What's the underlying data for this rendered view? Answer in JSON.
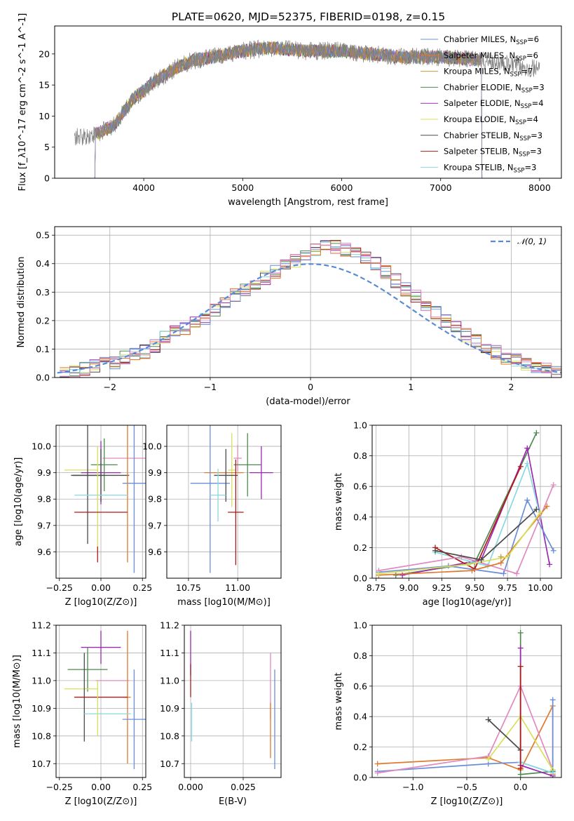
{
  "title": "PLATE=0620, MJD=52375, FIBERID=0198, z=0.15",
  "colors": {
    "Chabrier MILES": "#6a8fd8",
    "Salpeter MILES": "#e07a2e",
    "Kroupa MILES": "#c79a3b",
    "Chabrier ELODIE": "#4f8a4f",
    "Salpeter ELODIE": "#9a2ab0",
    "Kroupa ELODIE": "#d8e05a",
    "Chabrier STELIB": "#4a4a4a",
    "Salpeter STELIB": "#b01a1a",
    "Kroupa STELIB": "#8ad8e0",
    "Pink": "#e08ac0"
  },
  "chart_data": [
    {
      "type": "line",
      "name": "spectrum",
      "xlabel": "wavelength [Angstrom, rest frame]",
      "ylabel": "Flux [f_λ10^-17 erg cm^-2 s^-1 A^-1]",
      "xlim": [
        3100,
        8220
      ],
      "ylim": [
        0,
        24.5
      ],
      "xticks": [
        "4000",
        "5000",
        "6000",
        "7000",
        "8000"
      ],
      "yticks": [
        "0",
        "5",
        "10",
        "15",
        "20"
      ],
      "legend_position": "right",
      "legend": [
        {
          "label": "Chabrier MILES, N",
          "sub": "SSP",
          "suffix": "=6",
          "color": "#6a8fd8"
        },
        {
          "label": "Salpeter MILES, N",
          "sub": "SSP",
          "suffix": "=6",
          "color": "#e07a2e"
        },
        {
          "label": "Kroupa MILES, N",
          "sub": "SSP",
          "suffix": "=7",
          "color": "#c79a3b"
        },
        {
          "label": "Chabrier ELODIE, N",
          "sub": "SSP",
          "suffix": "=3",
          "color": "#4f8a4f"
        },
        {
          "label": "Salpeter ELODIE, N",
          "sub": "SSP",
          "suffix": "=4",
          "color": "#9a2ab0"
        },
        {
          "label": "Kroupa ELODIE, N",
          "sub": "SSP",
          "suffix": "=4",
          "color": "#d8e05a"
        },
        {
          "label": "Chabrier STELIB, N",
          "sub": "SSP",
          "suffix": "=3",
          "color": "#4a4a4a"
        },
        {
          "label": "Salpeter STELIB, N",
          "sub": "SSP",
          "suffix": "=3",
          "color": "#b01a1a"
        },
        {
          "label": "Kroupa STELIB, N",
          "sub": "SSP",
          "suffix": "=3",
          "color": "#8ad8e0"
        }
      ],
      "data_envelope": {
        "x": [
          3300,
          3500,
          3700,
          3900,
          4000,
          4100,
          4300,
          4500,
          4700,
          5000,
          5300,
          5600,
          6000,
          6300,
          6600,
          7000,
          7400,
          7800,
          8000
        ],
        "y": [
          6.5,
          7.0,
          8.5,
          13.0,
          14.0,
          15.5,
          17.5,
          19.0,
          19.5,
          20.5,
          21.0,
          20.5,
          20.5,
          20.0,
          19.5,
          19.5,
          19.0,
          18.0,
          17.5
        ]
      },
      "data_range": [
        3300,
        8000
      ],
      "model_range": [
        3500,
        7420
      ]
    },
    {
      "type": "bar",
      "name": "residual-histogram",
      "xlabel": "(data-model)/error",
      "ylabel": "Normed distribution",
      "xlim": [
        -2.55,
        2.5
      ],
      "ylim": [
        0,
        0.53
      ],
      "xticks": [
        "−2",
        "−1",
        "0",
        "1",
        "2"
      ],
      "yticks": [
        "0.0",
        "0.1",
        "0.2",
        "0.3",
        "0.4",
        "0.5"
      ],
      "legend": "𝒩(0, 1)",
      "bin_width": 0.1,
      "bin_start": -2.5,
      "hist": [
        0.01,
        0.02,
        0.03,
        0.04,
        0.05,
        0.05,
        0.07,
        0.08,
        0.09,
        0.11,
        0.14,
        0.16,
        0.17,
        0.19,
        0.21,
        0.24,
        0.26,
        0.29,
        0.31,
        0.33,
        0.35,
        0.37,
        0.39,
        0.41,
        0.43,
        0.45,
        0.46,
        0.46,
        0.45,
        0.44,
        0.42,
        0.4,
        0.37,
        0.34,
        0.31,
        0.29,
        0.26,
        0.23,
        0.2,
        0.18,
        0.15,
        0.13,
        0.11,
        0.09,
        0.07,
        0.06,
        0.05,
        0.04,
        0.03,
        0.02
      ]
    },
    {
      "type": "scatter",
      "name": "Z-vs-age",
      "xlabel": "Z [log10(Z/Z⊙)]",
      "ylabel": "age  [log10(age/yr)]",
      "xlim": [
        -0.27,
        0.27
      ],
      "ylim": [
        9.5,
        10.08
      ],
      "xticks": [
        "−0.25",
        "0.00",
        "0.25"
      ],
      "yticks": [
        "9.6",
        "9.7",
        "9.8",
        "9.9",
        "10.0"
      ],
      "points": [
        {
          "x": 0.15,
          "y": 9.955,
          "xerr": 0.14,
          "yerr": 0.0,
          "c": "Pink"
        },
        {
          "x": 0.02,
          "y": 9.93,
          "xerr": 0.08,
          "yerr": 0.1,
          "c": "Chabrier ELODIE"
        },
        {
          "x": -0.12,
          "y": 9.91,
          "xerr": 0.1,
          "yerr": 0.0,
          "c": "Kroupa ELODIE"
        },
        {
          "x": 0.0,
          "y": 9.9,
          "xerr": 0.12,
          "yerr": 0.12,
          "c": "Salpeter ELODIE"
        },
        {
          "x": 0.2,
          "y": 9.86,
          "xerr": 0.07,
          "yerr": 0.34,
          "c": "Chabrier MILES"
        },
        {
          "x": 0.0,
          "y": 9.89,
          "xerr": 0.17,
          "yerr": 0.1,
          "c": "Chabrier STELIB"
        },
        {
          "x": -0.08,
          "y": 9.89,
          "xerr": 0.1,
          "yerr": 0.26,
          "c": "Chabrier STELIB"
        },
        {
          "x": 0.16,
          "y": 9.86,
          "xerr": 0.0,
          "yerr": 0.3,
          "c": "Salpeter MILES"
        },
        {
          "x": 0.0,
          "y": 9.815,
          "xerr": 0.16,
          "yerr": 0.0,
          "c": "Kroupa STELIB"
        },
        {
          "x": -0.02,
          "y": 9.8,
          "xerr": 0.0,
          "yerr": 0.2,
          "c": "Kroupa ELODIE"
        },
        {
          "x": 0.0,
          "y": 9.75,
          "xerr": 0.16,
          "yerr": 0.0,
          "c": "Salpeter STELIB"
        },
        {
          "x": -0.02,
          "y": 9.59,
          "xerr": 0.0,
          "yerr": 0.03,
          "c": "Salpeter STELIB"
        }
      ]
    },
    {
      "type": "scatter",
      "name": "mass-vs-age",
      "xlabel": "mass [log10(M/M⊙)]",
      "ylabel": "",
      "xlim": [
        10.64,
        11.22
      ],
      "ylim": [
        9.5,
        10.08
      ],
      "xticks": [
        "10.75",
        "11.00"
      ],
      "yticks": [
        "9.6",
        "9.7",
        "9.8",
        "9.9",
        "10.0"
      ],
      "points": [
        {
          "x": 11.0,
          "y": 9.955,
          "xerr": 0.02,
          "yerr": 0.05,
          "c": "Pink"
        },
        {
          "x": 11.05,
          "y": 9.93,
          "xerr": 0.07,
          "yerr": 0.12,
          "c": "Chabrier ELODIE"
        },
        {
          "x": 10.97,
          "y": 9.91,
          "xerr": 0.02,
          "yerr": 0.14,
          "c": "Kroupa ELODIE"
        },
        {
          "x": 11.12,
          "y": 9.9,
          "xerr": 0.06,
          "yerr": 0.1,
          "c": "Salpeter ELODIE"
        },
        {
          "x": 10.93,
          "y": 9.9,
          "xerr": 0.1,
          "yerr": 0.0,
          "c": "Salpeter MILES"
        },
        {
          "x": 10.86,
          "y": 9.86,
          "xerr": 0.1,
          "yerr": 0.34,
          "c": "Chabrier MILES"
        },
        {
          "x": 10.94,
          "y": 9.89,
          "xerr": 0.06,
          "yerr": 0.1,
          "c": "Chabrier STELIB"
        },
        {
          "x": 10.9,
          "y": 9.815,
          "xerr": 0.04,
          "yerr": 0.1,
          "c": "Kroupa STELIB"
        },
        {
          "x": 10.99,
          "y": 9.75,
          "xerr": 0.04,
          "yerr": 0.2,
          "c": "Salpeter STELIB"
        }
      ]
    },
    {
      "type": "line",
      "name": "age-vs-mass-weight",
      "xlabel": "age  [log10(age/yr)]",
      "ylabel": "mass weight",
      "xlim": [
        8.72,
        10.16
      ],
      "ylim": [
        0,
        1.0
      ],
      "xticks": [
        "8.75",
        "9.00",
        "9.25",
        "9.50",
        "9.75",
        "10.00"
      ],
      "yticks": [
        "0.0",
        "0.2",
        "0.4",
        "0.6",
        "0.8",
        "1.0"
      ],
      "series": [
        {
          "c": "Chabrier ELODIE",
          "x": [
            8.9,
            9.5,
            9.97
          ],
          "y": [
            0.02,
            0.1,
            0.95
          ]
        },
        {
          "c": "Salpeter ELODIE",
          "x": [
            8.95,
            9.55,
            9.9,
            10.07
          ],
          "y": [
            0.02,
            0.12,
            0.85,
            0.09
          ]
        },
        {
          "c": "Kroupa STELIB",
          "x": [
            9.2,
            9.6,
            9.9,
            10.0
          ],
          "y": [
            0.17,
            0.08,
            0.75,
            0.4
          ]
        },
        {
          "c": "Salpeter STELIB",
          "x": [
            9.2,
            9.5,
            9.85
          ],
          "y": [
            0.2,
            0.06,
            0.73
          ]
        },
        {
          "c": "Chabrier MILES",
          "x": [
            8.77,
            9.3,
            9.72,
            9.9,
            10.1
          ],
          "y": [
            0.04,
            0.08,
            0.03,
            0.51,
            0.18
          ]
        },
        {
          "c": "Pink",
          "x": [
            8.77,
            9.4,
            9.82,
            10.1
          ],
          "y": [
            0.05,
            0.14,
            0.03,
            0.61
          ]
        },
        {
          "c": "Salpeter MILES",
          "x": [
            8.77,
            9.48,
            9.7,
            10.05
          ],
          "y": [
            0.02,
            0.05,
            0.1,
            0.47
          ]
        },
        {
          "c": "Kroupa ELODIE",
          "x": [
            8.77,
            9.45,
            9.75,
            10.0
          ],
          "y": [
            0.03,
            0.09,
            0.14,
            0.43
          ]
        },
        {
          "c": "Chabrier STELIB",
          "x": [
            9.2,
            9.55,
            9.97
          ],
          "y": [
            0.18,
            0.12,
            0.45
          ]
        },
        {
          "c": "Kroupa MILES",
          "x": [
            9.7
          ],
          "y": [
            0.14
          ]
        }
      ]
    },
    {
      "type": "scatter",
      "name": "Z-vs-mass",
      "xlabel": "Z [log10(Z/Z⊙)]",
      "ylabel": "mass [log10(M/M⊙)]",
      "xlim": [
        -0.27,
        0.27
      ],
      "ylim": [
        10.65,
        11.2
      ],
      "xticks": [
        "−0.25",
        "0.00",
        "0.25"
      ],
      "yticks": [
        "10.7",
        "10.8",
        "10.9",
        "11.0",
        "11.1",
        "11.2"
      ],
      "points": [
        {
          "x": 0.0,
          "y": 11.12,
          "xerr": 0.12,
          "yerr": 0.06,
          "c": "Salpeter ELODIE"
        },
        {
          "x": -0.08,
          "y": 11.04,
          "xerr": 0.12,
          "yerr": 0.08,
          "c": "Chabrier ELODIE"
        },
        {
          "x": 0.07,
          "y": 11.0,
          "xerr": 0.1,
          "yerr": 0.0,
          "c": "Pink"
        },
        {
          "x": -0.12,
          "y": 10.97,
          "xerr": 0.1,
          "yerr": 0.0,
          "c": "Kroupa ELODIE"
        },
        {
          "x": -0.1,
          "y": 10.94,
          "xerr": 0.0,
          "yerr": 0.16,
          "c": "Chabrier STELIB"
        },
        {
          "x": 0.16,
          "y": 10.94,
          "xerr": 0.02,
          "yerr": 0.24,
          "c": "Salpeter MILES"
        },
        {
          "x": 0.0,
          "y": 10.94,
          "xerr": 0.16,
          "yerr": 0.0,
          "c": "Salpeter STELIB"
        },
        {
          "x": 0.04,
          "y": 10.88,
          "xerr": 0.14,
          "yerr": 0.0,
          "c": "Kroupa STELIB"
        },
        {
          "x": 0.2,
          "y": 10.86,
          "xerr": 0.07,
          "yerr": 0.18,
          "c": "Chabrier MILES"
        },
        {
          "x": -0.02,
          "y": 10.9,
          "xerr": 0.0,
          "yerr": 0.1,
          "c": "Kroupa ELODIE"
        }
      ]
    },
    {
      "type": "scatter",
      "name": "EBV-vs-mass",
      "xlabel": "E(B-V)",
      "ylabel": "",
      "xlim": [
        -0.003,
        0.043
      ],
      "ylim": [
        10.65,
        11.2
      ],
      "xticks": [
        "0.000",
        "0.025"
      ],
      "yticks": [
        "10.7",
        "10.8",
        "10.9",
        "11.0",
        "11.1",
        "11.2"
      ],
      "points": [
        {
          "x": 0.0,
          "y": 11.1,
          "xerr": 0.0,
          "yerr": 0.08,
          "c": "Salpeter ELODIE"
        },
        {
          "x": 0.0,
          "y": 11.0,
          "xerr": 0.0,
          "yerr": 0.06,
          "c": "Salpeter STELIB"
        },
        {
          "x": 0.0005,
          "y": 10.85,
          "xerr": 0.0,
          "yerr": 0.07,
          "c": "Kroupa STELIB"
        },
        {
          "x": 0.038,
          "y": 10.98,
          "xerr": 0.0,
          "yerr": 0.12,
          "c": "Pink"
        },
        {
          "x": 0.038,
          "y": 10.82,
          "xerr": 0.0,
          "yerr": 0.1,
          "c": "Salpeter MILES"
        },
        {
          "x": 0.04,
          "y": 10.86,
          "xerr": 0.0,
          "yerr": 0.18,
          "c": "Chabrier MILES"
        }
      ]
    },
    {
      "type": "line",
      "name": "Z-vs-mass-weight",
      "xlabel": "Z [log10(Z/Z⊙)]",
      "ylabel": "mass weight",
      "xlim": [
        -1.38,
        0.38
      ],
      "ylim": [
        0,
        1.0
      ],
      "xticks": [
        "−1.0",
        "−0.5",
        "0.0"
      ],
      "yticks": [
        "0.0",
        "0.2",
        "0.4",
        "0.6",
        "0.8",
        "1.0"
      ],
      "series": [
        {
          "c": "Salpeter MILES",
          "x": [
            -1.33,
            -0.3,
            0.0,
            0.3,
            0.3
          ],
          "y": [
            0.09,
            0.13,
            0.05,
            0.47,
            0.02
          ]
        },
        {
          "c": "Chabrier MILES",
          "x": [
            -1.33,
            -0.3,
            0.0,
            0.3,
            0.3
          ],
          "y": [
            0.04,
            0.09,
            0.1,
            0.03,
            0.51
          ]
        },
        {
          "c": "Pink",
          "x": [
            -1.33,
            -0.3,
            0.0,
            0.3
          ],
          "y": [
            0.03,
            0.14,
            0.6,
            0.05
          ]
        },
        {
          "c": "Kroupa ELODIE",
          "x": [
            -0.3,
            0.0,
            0.3
          ],
          "y": [
            0.12,
            0.4,
            0.05
          ]
        },
        {
          "c": "Chabrier STELIB",
          "x": [
            -0.3,
            0.0
          ],
          "y": [
            0.38,
            0.18
          ]
        },
        {
          "c": "Chabrier ELODIE",
          "x": [
            0.0,
            0.0,
            0.3
          ],
          "y": [
            0.95,
            0.02,
            0.04
          ]
        },
        {
          "c": "Salpeter ELODIE",
          "x": [
            0.0,
            0.0,
            0.3
          ],
          "y": [
            0.85,
            0.08,
            0.01
          ]
        },
        {
          "c": "Kroupa STELIB",
          "x": [
            0.0,
            0.0,
            0.3
          ],
          "y": [
            0.73,
            0.1,
            0.03
          ]
        },
        {
          "c": "Salpeter STELIB",
          "x": [
            0.0,
            0.0
          ],
          "y": [
            0.73,
            0.06
          ]
        }
      ]
    }
  ]
}
